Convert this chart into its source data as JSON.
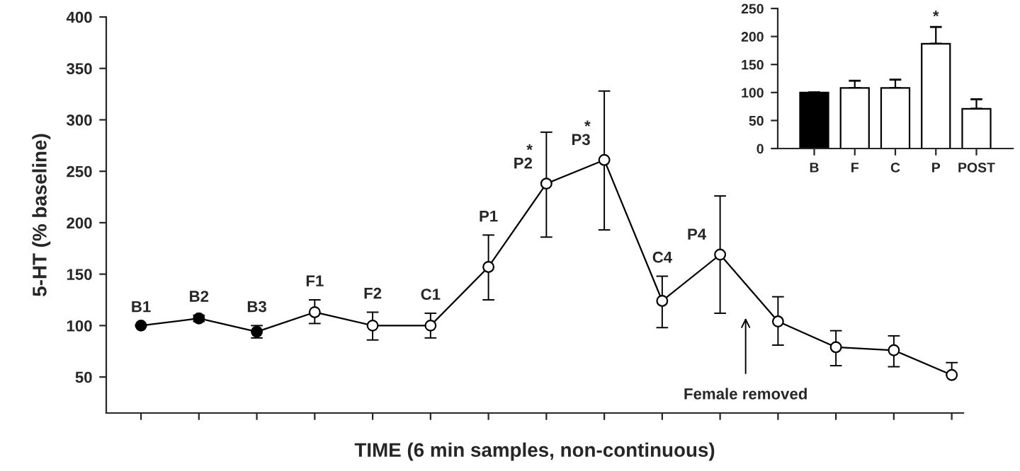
{
  "chart_data": [
    {
      "type": "line",
      "ylabel": "5-HT (% baseline)",
      "xlabel": "TIME (6 min samples, non-continuous)",
      "categories": [
        null,
        null,
        null,
        null,
        null,
        null,
        null,
        null,
        null,
        null,
        null,
        null,
        null,
        null,
        null
      ],
      "ylim": [
        15,
        400
      ],
      "yticks": [
        50,
        100,
        150,
        200,
        250,
        300,
        350,
        400
      ],
      "grid": false,
      "marker": "circle",
      "line_style": "solid",
      "series": [
        {
          "color": "#000000",
          "colors": [
            "#000000",
            "#000000",
            "#000000",
            "#ffffff",
            "#ffffff",
            "#ffffff",
            "#ffffff",
            "#ffffff",
            "#ffffff",
            "#ffffff",
            "#ffffff",
            "#ffffff",
            "#ffffff",
            "#ffffff",
            "#ffffff"
          ],
          "values": [
            100,
            107,
            94,
            113,
            100,
            100,
            157,
            238,
            261,
            124,
            169,
            104,
            79,
            76,
            52
          ],
          "errors": [
            null,
            [
              104,
              110
            ],
            [
              88,
              100
            ],
            [
              102,
              125
            ],
            [
              86,
              113
            ],
            [
              88,
              112
            ],
            [
              125,
              188
            ],
            [
              186,
              288
            ],
            [
              193,
              328
            ],
            [
              98,
              148
            ],
            [
              112,
              226
            ],
            [
              81,
              128
            ],
            [
              61,
              95
            ],
            [
              60,
              90
            ],
            [
              52,
              64
            ]
          ],
          "value_labels": [
            "B1",
            "B2",
            "B3",
            "F1",
            "F2",
            "C1",
            "P1",
            "*\nP2",
            "*\nP3",
            "C4",
            "P4",
            null,
            null,
            null,
            null
          ]
        }
      ],
      "annotations": [
        "Female removed"
      ]
    },
    {
      "type": "bar",
      "categories": [
        "B",
        "F",
        "C",
        "P",
        "POST"
      ],
      "values": [
        100,
        108,
        108,
        187,
        71
      ],
      "colors": [
        "#000000",
        "#ffffff",
        "#ffffff",
        "#ffffff",
        "#ffffff"
      ],
      "errors": [
        null,
        [
          108,
          121
        ],
        [
          108,
          123
        ],
        [
          187,
          217
        ],
        [
          71,
          88
        ]
      ],
      "value_labels": [
        null,
        null,
        null,
        "*",
        null
      ],
      "ylim": [
        0,
        250
      ],
      "yticks": [
        0,
        50,
        100,
        150,
        200,
        250
      ],
      "grid": false
    }
  ]
}
